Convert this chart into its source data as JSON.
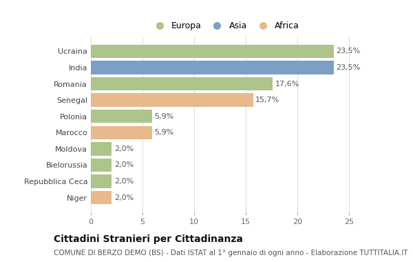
{
  "categories": [
    "Ucraina",
    "India",
    "Romania",
    "Senegal",
    "Polonia",
    "Marocco",
    "Moldova",
    "Bielorussia",
    "Repubblica Ceca",
    "Niger"
  ],
  "values": [
    23.5,
    23.5,
    17.6,
    15.7,
    5.9,
    5.9,
    2.0,
    2.0,
    2.0,
    2.0
  ],
  "labels": [
    "23,5%",
    "23,5%",
    "17,6%",
    "15,7%",
    "5,9%",
    "5,9%",
    "2,0%",
    "2,0%",
    "2,0%",
    "2,0%"
  ],
  "colors": [
    "#adc48a",
    "#7b9fc7",
    "#adc48a",
    "#e8b98a",
    "#adc48a",
    "#e8b98a",
    "#adc48a",
    "#adc48a",
    "#adc48a",
    "#e8b98a"
  ],
  "legend_labels": [
    "Europa",
    "Asia",
    "Africa"
  ],
  "legend_colors": [
    "#adc48a",
    "#7b9fc7",
    "#e8b98a"
  ],
  "xlim": [
    0,
    26
  ],
  "xticks": [
    0,
    5,
    10,
    15,
    20,
    25
  ],
  "title": "Cittadini Stranieri per Cittadinanza",
  "subtitle": "COMUNE DI BERZO DEMO (BS) - Dati ISTAT al 1° gennaio di ogni anno - Elaborazione TUTTITALIA.IT",
  "background_color": "#ffffff",
  "title_fontsize": 10,
  "subtitle_fontsize": 7.5,
  "label_fontsize": 8,
  "tick_fontsize": 8,
  "legend_fontsize": 9
}
